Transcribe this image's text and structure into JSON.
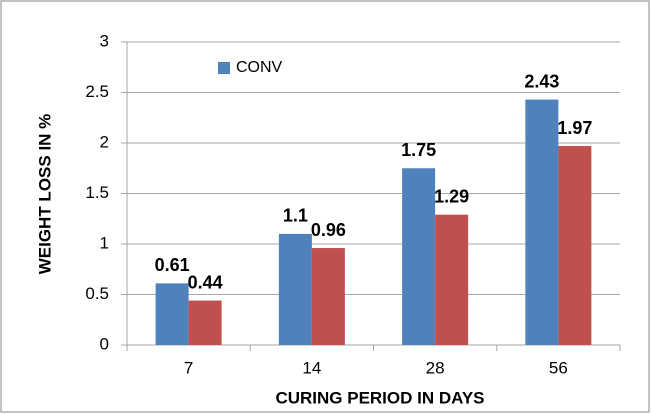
{
  "chart_data": {
    "type": "bar",
    "x_label": "CURING PERIOD IN DAYS",
    "y_label": "WEIGHT  LOSS IN %",
    "categories": [
      "7",
      "14",
      "28",
      "56"
    ],
    "series": [
      {
        "name": "CONV",
        "color": "#4f81bd",
        "values": [
          0.61,
          1.1,
          1.75,
          2.43
        ]
      },
      {
        "color": "#c0504d",
        "values": [
          0.44,
          0.96,
          1.29,
          1.97
        ]
      }
    ],
    "ylim": [
      0,
      3
    ],
    "yticks": [
      0,
      0.5,
      1,
      1.5,
      2,
      2.5,
      3
    ],
    "grid": true,
    "legend": "top-left"
  }
}
